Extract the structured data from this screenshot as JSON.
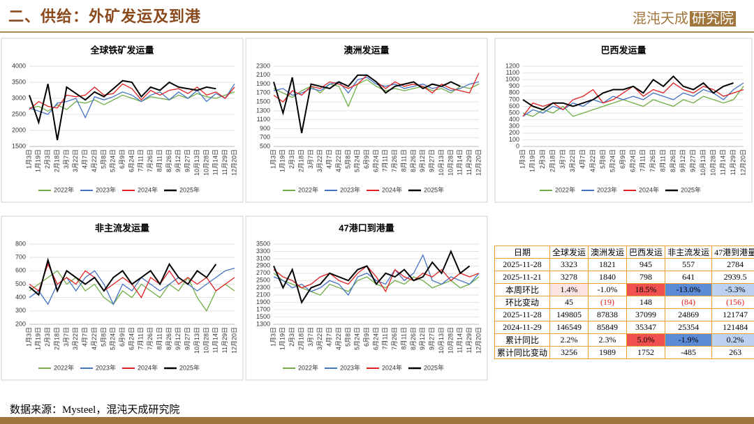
{
  "header": {
    "title": "二、供给：外矿发运及到港",
    "logo_left": "混沌天成",
    "logo_right": "研究院"
  },
  "chart_data": [
    {
      "type": "line",
      "title": "全球铁矿发运量",
      "categories": [
        "1月3日",
        "1月19日",
        "2月3日",
        "2月18日",
        "3月7日",
        "3月22日",
        "4月7日",
        "4月22日",
        "5月8日",
        "5月24日",
        "6月9日",
        "6月24日",
        "7月11日",
        "7月26日",
        "8月11日",
        "8月26日",
        "9月12日",
        "9月27日",
        "10月13日",
        "10月28日",
        "11月14日",
        "11月29日",
        "12月20日"
      ],
      "ylim": [
        1500,
        4000
      ],
      "yticks": [
        1500,
        2000,
        2500,
        3000,
        3500,
        4000
      ],
      "grid": true,
      "legend": "bottom",
      "series": [
        {
          "name": "2022年",
          "color": "#70ad47",
          "values": [
            2700,
            2750,
            2600,
            2800,
            2650,
            2900,
            2850,
            2950,
            2800,
            2950,
            3100,
            3000,
            2900,
            3050,
            3000,
            2950,
            3100,
            3000,
            3150,
            3050,
            3000,
            3100,
            3200
          ]
        },
        {
          "name": "2023年",
          "color": "#4472c4",
          "values": [
            2700,
            2600,
            2500,
            2850,
            2900,
            3000,
            2400,
            3050,
            2950,
            3050,
            3200,
            3100,
            2900,
            3100,
            3200,
            2950,
            3200,
            3000,
            3250,
            2900,
            3150,
            3000,
            3450
          ]
        },
        {
          "name": "2024年",
          "color": "#e02020",
          "values": [
            2650,
            2900,
            2750,
            2700,
            3100,
            3050,
            3100,
            3350,
            3100,
            3150,
            3450,
            3300,
            2950,
            3250,
            3100,
            3250,
            3300,
            3150,
            3350,
            3100,
            3200,
            3000,
            3350
          ]
        },
        {
          "name": "2025年",
          "color": "#000000",
          "values": [
            3100,
            2250,
            3450,
            1700,
            3350,
            3150,
            2950,
            3200,
            3050,
            3300,
            3550,
            3500,
            3050,
            3350,
            3250,
            3500,
            3350,
            3300,
            3250,
            3350,
            3300,
            null,
            null
          ]
        }
      ]
    },
    {
      "type": "line",
      "title": "澳洲发运量",
      "categories": [
        "1月3日",
        "1月19日",
        "2月3日",
        "2月18日",
        "3月7日",
        "3月22日",
        "4月7日",
        "4月22日",
        "5月8日",
        "5月24日",
        "6月9日",
        "6月24日",
        "7月11日",
        "7月26日",
        "8月11日",
        "8月26日",
        "9月12日",
        "9月27日",
        "10月13日",
        "10月28日",
        "11月14日",
        "11月29日",
        "12月20日"
      ],
      "ylim": [
        500,
        2300
      ],
      "yticks": [
        500,
        700,
        900,
        1100,
        1300,
        1500,
        1700,
        1900,
        2100,
        2300
      ],
      "grid": true,
      "legend": "bottom",
      "series": [
        {
          "name": "2022年",
          "color": "#70ad47",
          "values": [
            1800,
            1700,
            1600,
            1750,
            1850,
            1700,
            1900,
            1850,
            1400,
            1900,
            2000,
            1850,
            1750,
            1800,
            1750,
            1800,
            1850,
            1750,
            1800,
            1700,
            1850,
            1800,
            1900
          ]
        },
        {
          "name": "2023年",
          "color": "#4472c4",
          "values": [
            1750,
            1800,
            1650,
            1700,
            1800,
            1750,
            1900,
            1950,
            1700,
            2000,
            2050,
            1900,
            1850,
            1900,
            1800,
            1850,
            1900,
            1800,
            1850,
            1750,
            1800,
            1900,
            1950
          ]
        },
        {
          "name": "2024年",
          "color": "#e02020",
          "values": [
            1650,
            1500,
            1750,
            1650,
            1850,
            1800,
            1950,
            1900,
            1800,
            1900,
            2100,
            1950,
            1800,
            1950,
            1850,
            1900,
            1850,
            1700,
            1900,
            1800,
            1750,
            1700,
            2150
          ]
        },
        {
          "name": "2025年",
          "color": "#000000",
          "values": [
            1950,
            1250,
            2050,
            800,
            1900,
            1850,
            1800,
            1950,
            1850,
            2100,
            2100,
            1950,
            1700,
            1850,
            1900,
            1950,
            1800,
            1900,
            1850,
            1950,
            1850,
            null,
            null
          ]
        }
      ]
    },
    {
      "type": "line",
      "title": "巴西发运量",
      "categories": [
        "1月3日",
        "1月19日",
        "2月3日",
        "2月18日",
        "3月7日",
        "3月22日",
        "4月7日",
        "4月22日",
        "5月8日",
        "5月24日",
        "6月9日",
        "6月24日",
        "7月11日",
        "7月26日",
        "8月11日",
        "8月26日",
        "9月12日",
        "9月27日",
        "10月13日",
        "10月28日",
        "11月14日",
        "11月29日",
        "12月20日"
      ],
      "ylim": [
        0,
        1200
      ],
      "yticks": [
        0,
        100,
        200,
        300,
        400,
        500,
        600,
        700,
        800,
        900,
        1000,
        1100,
        1200
      ],
      "grid": true,
      "legend": "bottom",
      "series": [
        {
          "name": "2022年",
          "color": "#70ad47",
          "values": [
            500,
            450,
            550,
            500,
            600,
            450,
            500,
            550,
            600,
            650,
            700,
            650,
            600,
            700,
            650,
            600,
            700,
            650,
            750,
            700,
            650,
            700,
            900
          ]
        },
        {
          "name": "2023年",
          "color": "#4472c4",
          "values": [
            450,
            550,
            500,
            600,
            550,
            650,
            600,
            700,
            650,
            750,
            700,
            750,
            700,
            800,
            750,
            700,
            800,
            750,
            850,
            800,
            700,
            850,
            950
          ]
        },
        {
          "name": "2024年",
          "color": "#e02020",
          "values": [
            450,
            650,
            600,
            650,
            550,
            700,
            750,
            850,
            650,
            700,
            800,
            900,
            750,
            850,
            800,
            950,
            850,
            800,
            900,
            850,
            750,
            800,
            850
          ]
        },
        {
          "name": "2025年",
          "color": "#000000",
          "values": [
            700,
            600,
            550,
            650,
            650,
            600,
            650,
            700,
            800,
            850,
            850,
            900,
            800,
            1000,
            900,
            1050,
            900,
            850,
            950,
            800,
            900,
            950,
            null
          ]
        }
      ]
    },
    {
      "type": "line",
      "title": "非主流发运量",
      "categories": [
        "1月3日",
        "1月19日",
        "2月3日",
        "2月18日",
        "3月7日",
        "3月22日",
        "4月7日",
        "4月22日",
        "5月8日",
        "5月24日",
        "6月9日",
        "6月24日",
        "7月11日",
        "7月26日",
        "8月11日",
        "8月26日",
        "9月12日",
        "9月27日",
        "10月13日",
        "10月28日",
        "11月14日",
        "11月29日",
        "12月20日"
      ],
      "ylim": [
        200,
        800
      ],
      "yticks": [
        200,
        300,
        400,
        500,
        600,
        700,
        800
      ],
      "grid": true,
      "legend": "bottom",
      "series": [
        {
          "name": "2022年",
          "color": "#70ad47",
          "values": [
            450,
            500,
            550,
            600,
            500,
            550,
            450,
            500,
            400,
            350,
            450,
            400,
            500,
            450,
            400,
            500,
            450,
            550,
            400,
            300,
            450,
            500,
            450
          ]
        },
        {
          "name": "2023年",
          "color": "#4472c4",
          "values": [
            400,
            450,
            350,
            500,
            550,
            450,
            550,
            600,
            500,
            350,
            500,
            450,
            550,
            500,
            450,
            500,
            550,
            500,
            450,
            500,
            550,
            600,
            620
          ]
        },
        {
          "name": "2024年",
          "color": "#e02020",
          "values": [
            500,
            450,
            650,
            500,
            550,
            500,
            600,
            550,
            450,
            500,
            550,
            500,
            400,
            550,
            500,
            600,
            500,
            550,
            500,
            550,
            450,
            500,
            550
          ]
        },
        {
          "name": "2025年",
          "color": "#000000",
          "values": [
            480,
            420,
            680,
            450,
            600,
            550,
            500,
            550,
            450,
            550,
            600,
            500,
            550,
            600,
            500,
            650,
            550,
            500,
            600,
            550,
            650,
            null,
            null
          ]
        }
      ]
    },
    {
      "type": "line",
      "title": "47港口到港量",
      "categories": [
        "1月3日",
        "1月19日",
        "2月3日",
        "2月18日",
        "3月7日",
        "3月22日",
        "4月7日",
        "4月22日",
        "5月8日",
        "5月24日",
        "6月9日",
        "6月24日",
        "7月11日",
        "7月26日",
        "8月11日",
        "8月26日",
        "9月12日",
        "9月27日",
        "10月13日",
        "10月28日",
        "11月14日",
        "11月29日",
        "12月20日"
      ],
      "ylim": [
        1300,
        3500
      ],
      "yticks": [
        1300,
        1500,
        1700,
        1900,
        2100,
        2300,
        2500,
        2700,
        2900,
        3100,
        3300,
        3500
      ],
      "grid": true,
      "legend": "bottom",
      "series": [
        {
          "name": "2022年",
          "color": "#70ad47",
          "values": [
            2700,
            2500,
            2400,
            2300,
            2200,
            2100,
            2400,
            2300,
            2200,
            2500,
            2600,
            2400,
            2300,
            2500,
            2400,
            2600,
            2500,
            2300,
            2400,
            2500,
            2300,
            2400,
            2600
          ]
        },
        {
          "name": "2023年",
          "color": "#4472c4",
          "values": [
            2600,
            2500,
            2300,
            2400,
            2200,
            2300,
            2500,
            2400,
            2100,
            2600,
            2700,
            2500,
            2400,
            2800,
            2500,
            2700,
            3200,
            2500,
            2400,
            2600,
            2500,
            2400,
            2700
          ]
        },
        {
          "name": "2024年",
          "color": "#e02020",
          "values": [
            2800,
            2600,
            2500,
            2300,
            2400,
            2600,
            2700,
            2500,
            2400,
            2700,
            2900,
            2600,
            2200,
            2800,
            2600,
            2500,
            2700,
            2600,
            2800,
            2500,
            2700,
            2600,
            2700
          ]
        },
        {
          "name": "2025年",
          "color": "#000000",
          "values": [
            2900,
            2300,
            2800,
            1900,
            2300,
            2400,
            2700,
            2600,
            2500,
            2800,
            2900,
            2400,
            2700,
            2600,
            2800,
            2500,
            2600,
            3000,
            2700,
            3300,
            2700,
            2900,
            null
          ]
        }
      ]
    }
  ],
  "table": {
    "header": [
      "日期",
      "全球发运",
      "澳洲发运",
      "巴西发运",
      "非主流发运",
      "47港到港量"
    ],
    "rows": [
      [
        "2025-11-28",
        "3323",
        "1821",
        "945",
        "557",
        "2784"
      ],
      [
        "2025-11-21",
        "3278",
        "1840",
        "798",
        "641",
        "2939.5"
      ],
      [
        "本周环比",
        "1.4%",
        "-1.0%",
        "18.5%",
        "-13.0%",
        "-5.3%"
      ],
      [
        "环比变动",
        "45",
        "(19)",
        "148",
        "(84)",
        "(156)"
      ],
      [
        "2025-11-28",
        "149805",
        "87838",
        "37099",
        "24869",
        "121747"
      ],
      [
        "2024-11-29",
        "146549",
        "85849",
        "35347",
        "25354",
        "121484"
      ],
      [
        "累计同比",
        "2.2%",
        "2.3%",
        "5.0%",
        "-1.9%",
        "0.2%"
      ],
      [
        "累计同比变动",
        "3256",
        "1989",
        "1752",
        "-485",
        "263"
      ]
    ]
  },
  "footer": {
    "source": "数据来源：Mysteel，混沌天成研究院"
  }
}
